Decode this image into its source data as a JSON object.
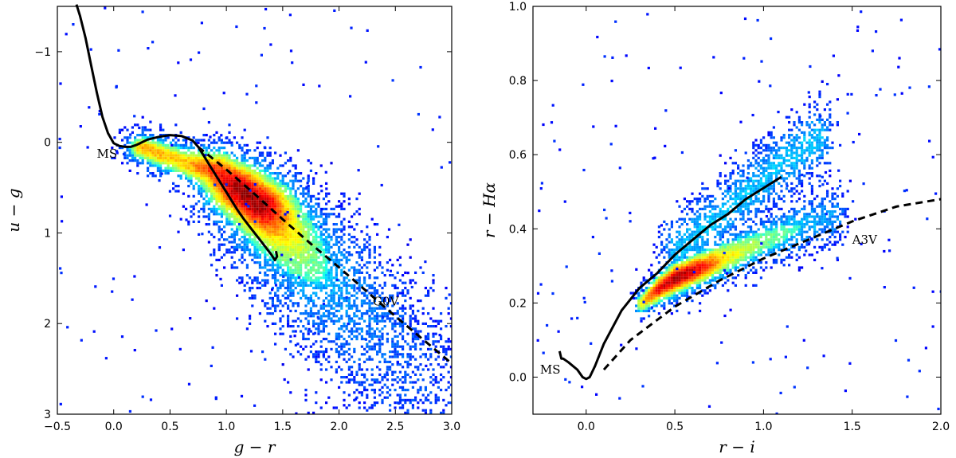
{
  "chart_data": [
    {
      "type": "heatmap",
      "title": "",
      "xlabel": "g − r",
      "ylabel": "u − g",
      "xlim": [
        -0.5,
        3.0
      ],
      "ylim": [
        3.0,
        -1.5
      ],
      "y_inverted": true,
      "xticks": [
        -0.5,
        0.0,
        0.5,
        1.0,
        1.5,
        2.0,
        2.5,
        3.0
      ],
      "xtick_labels": [
        "−0.5",
        "0.0",
        "0.5",
        "1.0",
        "1.5",
        "2.0",
        "2.5",
        "3.0"
      ],
      "yticks": [
        -1,
        0,
        1,
        2,
        3
      ],
      "ytick_labels": [
        "−1",
        "0",
        "1",
        "2",
        "3"
      ],
      "density_model": {
        "colormap": "jet",
        "ridge": [
          [
            0.25,
            0.05
          ],
          [
            0.6,
            0.2
          ],
          [
            0.9,
            0.3
          ],
          [
            1.1,
            0.5
          ],
          [
            1.3,
            0.7
          ],
          [
            1.5,
            1.0
          ],
          [
            1.7,
            1.3
          ],
          [
            1.9,
            1.6
          ],
          [
            2.1,
            1.9
          ],
          [
            2.4,
            2.3
          ],
          [
            2.6,
            2.7
          ]
        ],
        "ridge_halfwidth": [
          0.1,
          0.12,
          0.16,
          0.2,
          0.22,
          0.25,
          0.27,
          0.3,
          0.32,
          0.35,
          0.35
        ],
        "ridge_weight": [
          0.7,
          0.65,
          0.85,
          1.0,
          1.0,
          0.65,
          0.45,
          0.3,
          0.22,
          0.15,
          0.1
        ],
        "peak": [
          1.05,
          0.5
        ]
      },
      "series": [
        {
          "name": "MS",
          "style": "solid",
          "x": [
            -0.33,
            -0.3,
            -0.25,
            -0.2,
            -0.15,
            -0.1,
            -0.05,
            0.0,
            0.05,
            0.1,
            0.15,
            0.2,
            0.3,
            0.4,
            0.5,
            0.6,
            0.7,
            0.75,
            0.8,
            0.85,
            0.9,
            0.95,
            1.0,
            1.05,
            1.1,
            1.15,
            1.2,
            1.25,
            1.3,
            1.35,
            1.4,
            1.43,
            1.45,
            1.44
          ],
          "y": [
            -1.52,
            -1.4,
            -1.15,
            -0.85,
            -0.55,
            -0.28,
            -0.1,
            0.01,
            0.04,
            0.05,
            0.05,
            0.03,
            -0.03,
            -0.06,
            -0.08,
            -0.07,
            -0.02,
            0.05,
            0.15,
            0.25,
            0.35,
            0.45,
            0.55,
            0.65,
            0.75,
            0.84,
            0.92,
            1.0,
            1.08,
            1.16,
            1.24,
            1.3,
            1.26,
            1.2
          ]
        },
        {
          "name": "G0V",
          "style": "dashed",
          "x": [
            0.75,
            1.0,
            1.25,
            1.5,
            1.75,
            2.0,
            2.25,
            2.5,
            2.75,
            3.0
          ],
          "y": [
            0.05,
            0.3,
            0.57,
            0.85,
            1.12,
            1.38,
            1.65,
            1.92,
            2.18,
            2.44
          ]
        }
      ],
      "annotations": [
        {
          "text": "MS",
          "x": -0.15,
          "y": 0.17
        },
        {
          "text": "G0V",
          "x": 2.3,
          "y": 1.8
        }
      ]
    },
    {
      "type": "heatmap",
      "title": "",
      "xlabel": "r − i",
      "ylabel": "r − Hα",
      "xlim": [
        -0.3,
        2.0
      ],
      "ylim": [
        -0.1,
        1.0
      ],
      "xticks": [
        0.0,
        0.5,
        1.0,
        1.5,
        2.0
      ],
      "xtick_labels": [
        "0.0",
        "0.5",
        "1.0",
        "1.5",
        "2.0"
      ],
      "yticks": [
        0.0,
        0.2,
        0.4,
        0.6,
        0.8,
        1.0
      ],
      "ytick_labels": [
        "0.0",
        "0.2",
        "0.4",
        "0.6",
        "0.8",
        "1.0"
      ],
      "density_model": {
        "colormap": "jet",
        "ridge": [
          [
            0.3,
            0.2
          ],
          [
            0.4,
            0.24
          ],
          [
            0.5,
            0.27
          ],
          [
            0.6,
            0.29
          ],
          [
            0.8,
            0.33
          ],
          [
            1.0,
            0.37
          ],
          [
            1.2,
            0.41
          ],
          [
            1.4,
            0.44
          ]
        ],
        "ridge_halfwidth": [
          0.02,
          0.025,
          0.03,
          0.03,
          0.035,
          0.035,
          0.04,
          0.04
        ],
        "ridge_weight": [
          0.6,
          0.9,
          1.0,
          0.95,
          0.6,
          0.45,
          0.35,
          0.25
        ],
        "upper_ridge": [
          [
            0.5,
            0.34
          ],
          [
            0.7,
            0.42
          ],
          [
            0.9,
            0.5
          ],
          [
            1.1,
            0.58
          ],
          [
            1.3,
            0.65
          ]
        ],
        "peak": [
          0.52,
          0.27
        ]
      },
      "series": [
        {
          "name": "MS",
          "style": "solid",
          "x": [
            -0.15,
            -0.14,
            -0.13,
            -0.1,
            -0.05,
            -0.02,
            0.0,
            0.02,
            0.05,
            0.1,
            0.2,
            0.3,
            0.4,
            0.5,
            0.6,
            0.7,
            0.8,
            0.9,
            1.0,
            1.1
          ],
          "y": [
            0.07,
            0.05,
            0.05,
            0.04,
            0.02,
            0.0,
            -0.005,
            0.0,
            0.03,
            0.09,
            0.18,
            0.24,
            0.28,
            0.33,
            0.37,
            0.41,
            0.44,
            0.48,
            0.51,
            0.54
          ]
        },
        {
          "name": "A3V",
          "style": "dashed",
          "x": [
            0.1,
            0.25,
            0.5,
            0.75,
            1.0,
            1.25,
            1.5,
            1.75,
            2.0
          ],
          "y": [
            0.02,
            0.1,
            0.19,
            0.26,
            0.32,
            0.37,
            0.42,
            0.46,
            0.48
          ]
        }
      ],
      "annotations": [
        {
          "text": "MS",
          "x": -0.26,
          "y": 0.01
        },
        {
          "text": "A3V",
          "x": 1.5,
          "y": 0.36
        }
      ]
    }
  ]
}
